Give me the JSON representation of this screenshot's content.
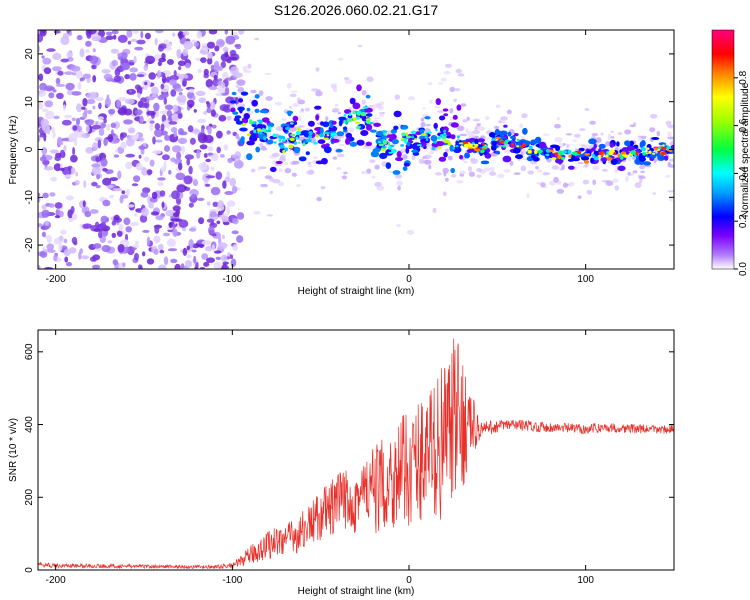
{
  "title": "S126.2026.060.02.21.G17",
  "chart_data": [
    {
      "type": "heatmap",
      "xlabel": "Height of straight line (km)",
      "ylabel": "Frequency (Hz)",
      "xlim": [
        -210,
        150
      ],
      "ylim": [
        -25,
        25
      ],
      "xticks": [
        -200,
        -100,
        0,
        100
      ],
      "yticks": [
        -20,
        -10,
        0,
        10,
        20
      ],
      "xtick_labels": [
        "-200",
        "-100",
        "0",
        "100"
      ],
      "ytick_labels": [
        "-20",
        "-10",
        "0",
        "10",
        "20"
      ],
      "ridge": {
        "x": [
          -100,
          -90,
          -80,
          -70,
          -60,
          -50,
          -40,
          -30,
          -25,
          -20,
          -10,
          0,
          10,
          20,
          30,
          40,
          50,
          60,
          70,
          80,
          90,
          100,
          110,
          120,
          130,
          140,
          150
        ],
        "freq": [
          8,
          5,
          3,
          2,
          3,
          3,
          5,
          6,
          8,
          3,
          1,
          2,
          2,
          3,
          1,
          0,
          2,
          1,
          0,
          -1,
          -1,
          -1,
          -1,
          -1,
          -1,
          0,
          0
        ]
      },
      "noise_region_x": [
        -210,
        -100
      ],
      "colorbar": {
        "label": "Normalized spectral amplitude",
        "range": [
          0,
          1
        ],
        "ticks": [
          0.0,
          0.2,
          0.4,
          0.6,
          0.8
        ],
        "tick_labels": [
          "0.0",
          "0.2",
          "0.4",
          "0.6",
          "0.8"
        ],
        "colors": [
          "#ffffff",
          "#7a00ff",
          "#0000ff",
          "#00c0ff",
          "#00ff60",
          "#c0ff00",
          "#ffff00",
          "#ff8000",
          "#ff0000",
          "#ff0080"
        ]
      }
    },
    {
      "type": "line",
      "xlabel": "Height of straight line (km)",
      "ylabel": "SNR (10 * v/v)",
      "xlim": [
        -210,
        150
      ],
      "ylim": [
        0,
        660
      ],
      "xticks": [
        -200,
        -100,
        0,
        100
      ],
      "yticks": [
        0,
        200,
        400,
        600
      ],
      "xtick_labels": [
        "-200",
        "-100",
        "0",
        "100"
      ],
      "ytick_labels": [
        "0",
        "200",
        "400",
        "600"
      ],
      "color": "#e8302a",
      "x": [
        -210,
        -200,
        -150,
        -110,
        -100,
        -95,
        -90,
        -85,
        -80,
        -75,
        -70,
        -65,
        -60,
        -55,
        -50,
        -45,
        -40,
        -35,
        -30,
        -25,
        -20,
        -15,
        -10,
        -5,
        0,
        5,
        10,
        15,
        20,
        25,
        30,
        35,
        40,
        45,
        50,
        60,
        70,
        80,
        90,
        100,
        110,
        120,
        130,
        140,
        150
      ],
      "snr": [
        15,
        12,
        10,
        8,
        12,
        25,
        40,
        55,
        70,
        80,
        85,
        90,
        110,
        130,
        150,
        165,
        180,
        195,
        200,
        210,
        220,
        230,
        250,
        270,
        280,
        300,
        320,
        330,
        360,
        400,
        410,
        400,
        385,
        390,
        395,
        400,
        395,
        392,
        390,
        388,
        392,
        390,
        388,
        386,
        388
      ],
      "spread": [
        6,
        6,
        5,
        5,
        8,
        15,
        25,
        35,
        40,
        45,
        45,
        50,
        55,
        60,
        70,
        80,
        90,
        95,
        100,
        110,
        120,
        130,
        140,
        150,
        160,
        170,
        180,
        200,
        220,
        240,
        200,
        100,
        30,
        20,
        18,
        16,
        15,
        14,
        14,
        14,
        13,
        13,
        13,
        12,
        12
      ]
    }
  ]
}
